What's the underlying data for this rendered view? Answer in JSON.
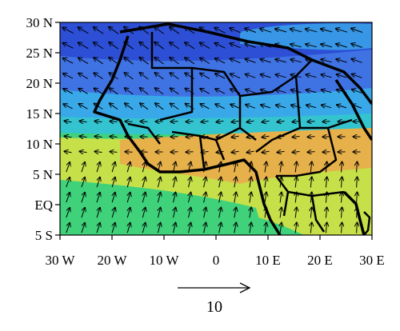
{
  "map": {
    "y_ticks": [
      "30 N",
      "25 N",
      "20 N",
      "15 N",
      "10 N",
      "5 N",
      "EQ",
      "5 S"
    ],
    "x_ticks": [
      "30 W",
      "20 W",
      "10 W",
      "0",
      "10 E",
      "20 E",
      "30 E"
    ],
    "lon_range": [
      -30,
      30
    ],
    "lat_range": [
      -5,
      30
    ],
    "reference_vector": {
      "label": "10",
      "magnitude": 10
    },
    "colors": {
      "deep_blue": "#2d4fd6",
      "blue": "#3f73e4",
      "light_blue": "#39a8e8",
      "cyan": "#33c4d0",
      "green": "#3fd27a",
      "yellow_green": "#c6e049",
      "orange": "#e6b04a",
      "coast": "#000000"
    }
  }
}
